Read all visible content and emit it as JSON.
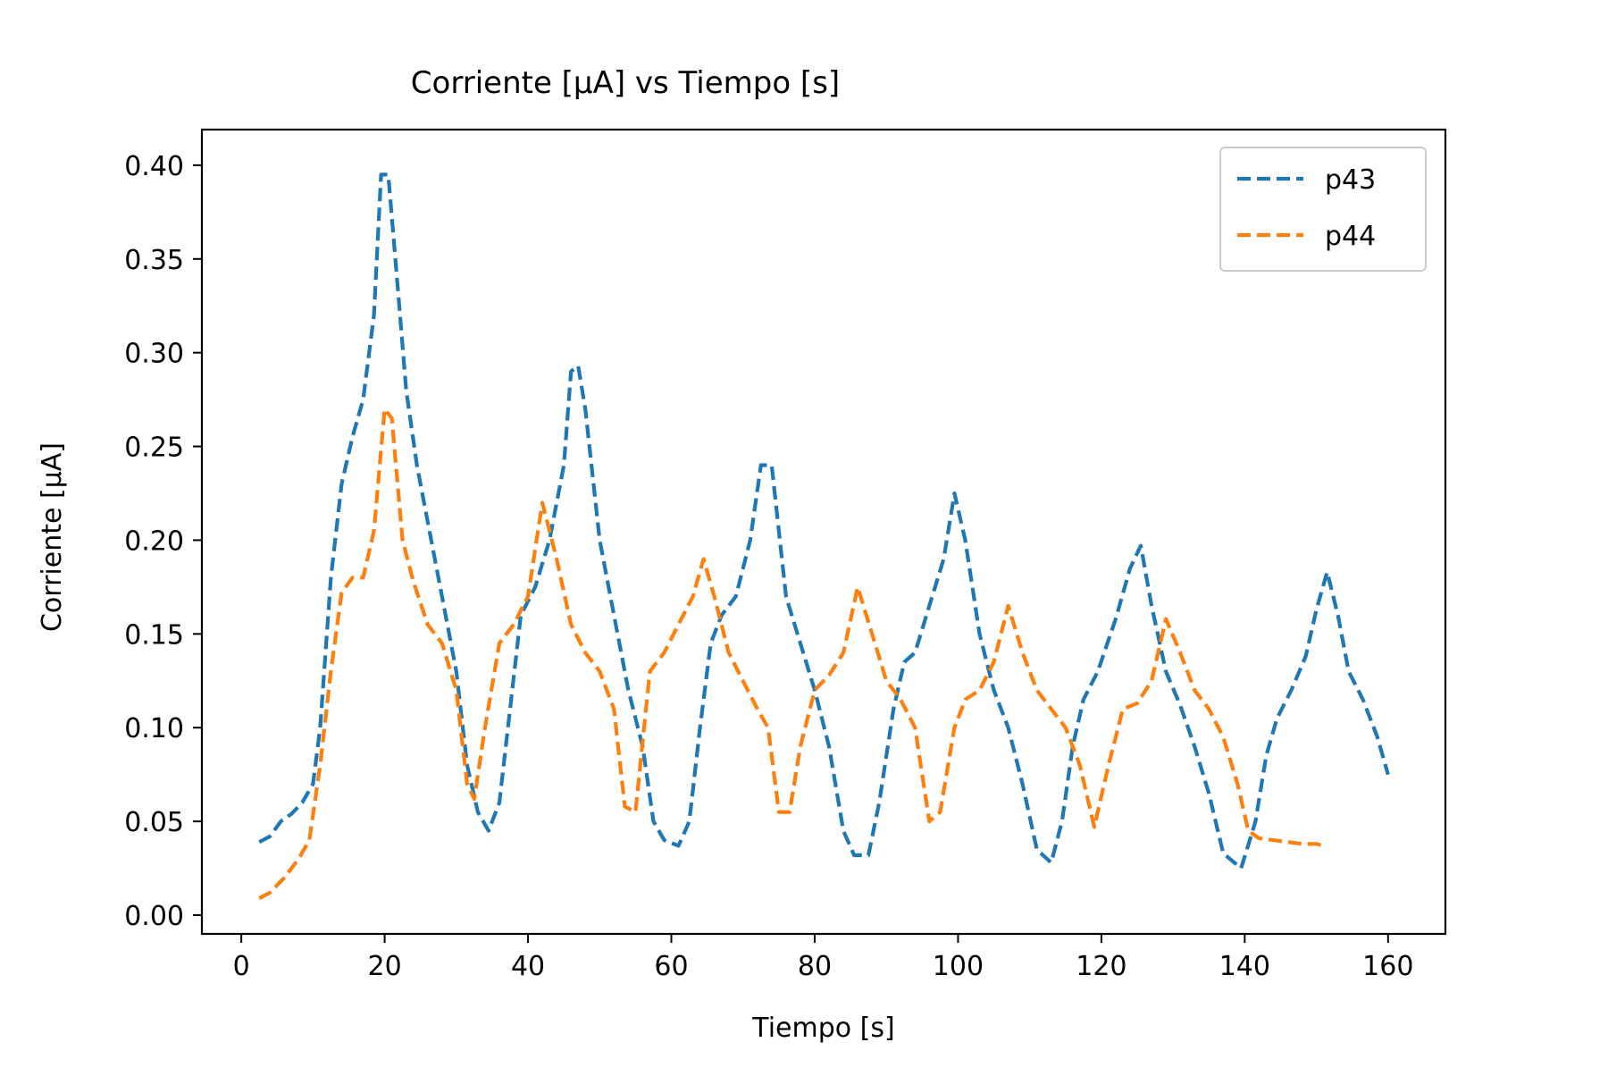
{
  "chart_data": {
    "type": "line",
    "title": "Corriente [μA] vs Tiempo [s]",
    "xlabel": "Tiempo [s]",
    "ylabel": "Corriente [μA]",
    "xlim": [
      -5.5,
      168
    ],
    "ylim": [
      -0.01,
      0.419
    ],
    "x_ticks": [
      0,
      20,
      40,
      60,
      80,
      100,
      120,
      140,
      160
    ],
    "x_tick_labels": [
      "0",
      "20",
      "40",
      "60",
      "80",
      "100",
      "120",
      "140",
      "160"
    ],
    "y_ticks": [
      0.0,
      0.05,
      0.1,
      0.15,
      0.2,
      0.25,
      0.3,
      0.35,
      0.4
    ],
    "y_tick_labels": [
      "0.00",
      "0.05",
      "0.10",
      "0.15",
      "0.20",
      "0.25",
      "0.30",
      "0.35",
      "0.40"
    ],
    "grid": false,
    "legend_position": "top-right",
    "line_style": "dashed",
    "series": [
      {
        "name": "p43",
        "color": "#1f77b4",
        "points": [
          [
            2.5,
            0.039
          ],
          [
            4,
            0.042
          ],
          [
            5.5,
            0.05
          ],
          [
            7,
            0.054
          ],
          [
            8.5,
            0.06
          ],
          [
            10,
            0.07
          ],
          [
            11,
            0.1
          ],
          [
            12.5,
            0.18
          ],
          [
            14,
            0.23
          ],
          [
            15.5,
            0.255
          ],
          [
            17,
            0.275
          ],
          [
            18.5,
            0.32
          ],
          [
            19.5,
            0.395
          ],
          [
            20.5,
            0.395
          ],
          [
            21.5,
            0.35
          ],
          [
            23,
            0.28
          ],
          [
            24.5,
            0.24
          ],
          [
            26,
            0.21
          ],
          [
            28,
            0.17
          ],
          [
            30,
            0.13
          ],
          [
            31.5,
            0.08
          ],
          [
            33,
            0.055
          ],
          [
            34.5,
            0.045
          ],
          [
            36,
            0.06
          ],
          [
            37.5,
            0.11
          ],
          [
            39,
            0.16
          ],
          [
            41,
            0.175
          ],
          [
            43,
            0.2
          ],
          [
            45,
            0.24
          ],
          [
            46,
            0.29
          ],
          [
            47,
            0.293
          ],
          [
            48,
            0.27
          ],
          [
            50,
            0.2
          ],
          [
            52,
            0.16
          ],
          [
            54,
            0.12
          ],
          [
            56,
            0.09
          ],
          [
            57.5,
            0.05
          ],
          [
            59,
            0.04
          ],
          [
            61,
            0.037
          ],
          [
            62.5,
            0.05
          ],
          [
            64,
            0.1
          ],
          [
            65.5,
            0.145
          ],
          [
            67,
            0.16
          ],
          [
            69,
            0.17
          ],
          [
            71,
            0.2
          ],
          [
            72.5,
            0.24
          ],
          [
            74,
            0.24
          ],
          [
            76,
            0.17
          ],
          [
            78,
            0.145
          ],
          [
            80,
            0.12
          ],
          [
            82,
            0.09
          ],
          [
            84,
            0.045
          ],
          [
            85.5,
            0.032
          ],
          [
            87.5,
            0.032
          ],
          [
            89,
            0.06
          ],
          [
            91,
            0.11
          ],
          [
            92.5,
            0.135
          ],
          [
            94,
            0.14
          ],
          [
            96,
            0.165
          ],
          [
            98,
            0.19
          ],
          [
            99.5,
            0.225
          ],
          [
            101,
            0.2
          ],
          [
            103,
            0.15
          ],
          [
            105,
            0.12
          ],
          [
            107,
            0.1
          ],
          [
            109,
            0.07
          ],
          [
            111,
            0.035
          ],
          [
            113,
            0.028
          ],
          [
            114.5,
            0.05
          ],
          [
            116,
            0.09
          ],
          [
            117.5,
            0.115
          ],
          [
            119.5,
            0.13
          ],
          [
            122,
            0.158
          ],
          [
            124,
            0.185
          ],
          [
            125.5,
            0.197
          ],
          [
            127,
            0.165
          ],
          [
            129,
            0.13
          ],
          [
            131,
            0.112
          ],
          [
            133,
            0.09
          ],
          [
            135,
            0.065
          ],
          [
            137,
            0.033
          ],
          [
            139.5,
            0.025
          ],
          [
            141.5,
            0.05
          ],
          [
            143,
            0.085
          ],
          [
            144.5,
            0.105
          ],
          [
            146.5,
            0.12
          ],
          [
            148.5,
            0.138
          ],
          [
            150,
            0.163
          ],
          [
            151.5,
            0.183
          ],
          [
            153,
            0.16
          ],
          [
            154.5,
            0.13
          ],
          [
            156.5,
            0.115
          ],
          [
            158.5,
            0.095
          ],
          [
            160,
            0.075
          ]
        ]
      },
      {
        "name": "p44",
        "color": "#ff7f0e",
        "points": [
          [
            2.5,
            0.009
          ],
          [
            4,
            0.012
          ],
          [
            6,
            0.02
          ],
          [
            8,
            0.03
          ],
          [
            9.5,
            0.04
          ],
          [
            11,
            0.08
          ],
          [
            12.5,
            0.13
          ],
          [
            14,
            0.172
          ],
          [
            15.5,
            0.18
          ],
          [
            17,
            0.18
          ],
          [
            18.5,
            0.205
          ],
          [
            20,
            0.27
          ],
          [
            21,
            0.265
          ],
          [
            22.5,
            0.2
          ],
          [
            24,
            0.178
          ],
          [
            26,
            0.155
          ],
          [
            28,
            0.145
          ],
          [
            30,
            0.12
          ],
          [
            31.5,
            0.07
          ],
          [
            32.5,
            0.062
          ],
          [
            34,
            0.1
          ],
          [
            36,
            0.145
          ],
          [
            38,
            0.155
          ],
          [
            40,
            0.17
          ],
          [
            42,
            0.22
          ],
          [
            44,
            0.19
          ],
          [
            46,
            0.155
          ],
          [
            48,
            0.14
          ],
          [
            50,
            0.13
          ],
          [
            52,
            0.11
          ],
          [
            53.5,
            0.058
          ],
          [
            55,
            0.055
          ],
          [
            57,
            0.13
          ],
          [
            59,
            0.14
          ],
          [
            61,
            0.155
          ],
          [
            63,
            0.17
          ],
          [
            64.5,
            0.19
          ],
          [
            66,
            0.17
          ],
          [
            68,
            0.14
          ],
          [
            70,
            0.125
          ],
          [
            72,
            0.11
          ],
          [
            73.5,
            0.1
          ],
          [
            75,
            0.055
          ],
          [
            76.5,
            0.055
          ],
          [
            78,
            0.09
          ],
          [
            80,
            0.12
          ],
          [
            82,
            0.128
          ],
          [
            84,
            0.14
          ],
          [
            86,
            0.175
          ],
          [
            88,
            0.15
          ],
          [
            90,
            0.125
          ],
          [
            92,
            0.115
          ],
          [
            94,
            0.1
          ],
          [
            96,
            0.05
          ],
          [
            97.5,
            0.055
          ],
          [
            99.5,
            0.1
          ],
          [
            101,
            0.115
          ],
          [
            103,
            0.12
          ],
          [
            105,
            0.135
          ],
          [
            107,
            0.165
          ],
          [
            109,
            0.14
          ],
          [
            111,
            0.12
          ],
          [
            113,
            0.11
          ],
          [
            115,
            0.1
          ],
          [
            117,
            0.08
          ],
          [
            119,
            0.047
          ],
          [
            121,
            0.08
          ],
          [
            123,
            0.11
          ],
          [
            125,
            0.113
          ],
          [
            127,
            0.125
          ],
          [
            129,
            0.158
          ],
          [
            131,
            0.14
          ],
          [
            133,
            0.12
          ],
          [
            135,
            0.11
          ],
          [
            137,
            0.095
          ],
          [
            139,
            0.07
          ],
          [
            140.5,
            0.045
          ],
          [
            142,
            0.041
          ],
          [
            144,
            0.04
          ],
          [
            146,
            0.039
          ],
          [
            148,
            0.038
          ],
          [
            150,
            0.038
          ],
          [
            151,
            0.037
          ]
        ]
      }
    ]
  }
}
